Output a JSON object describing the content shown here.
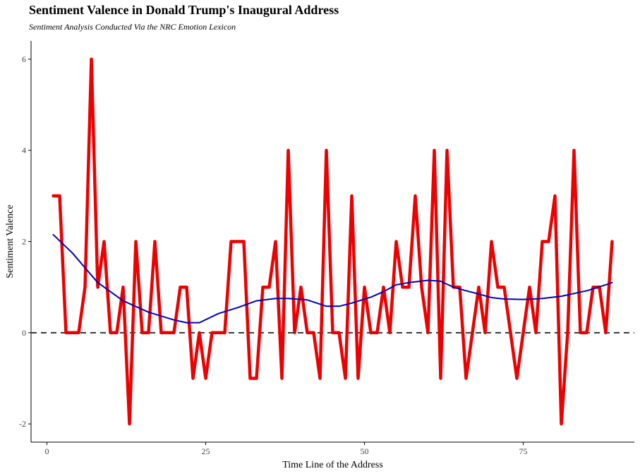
{
  "chart_data": {
    "type": "line",
    "title": "Sentiment Valence in Donald Trump's Inaugural Address",
    "subtitle": "Sentiment Analysis Conducted Via the NRC Emotion Lexicon",
    "xlabel": "Time Line of the Address",
    "ylabel": "Sentiment Valence",
    "xlim": [
      -2.5,
      92.5
    ],
    "ylim": [
      -2.4,
      6.4
    ],
    "x_ticks": [
      0,
      25,
      50,
      75
    ],
    "y_ticks": [
      -2,
      0,
      2,
      4,
      6
    ],
    "grid": false,
    "reference_line": {
      "y": 0,
      "style": "dashed",
      "color": "#333333"
    },
    "series": [
      {
        "kind": "sentiment",
        "color": "#ee0000",
        "x": [
          1,
          2,
          3,
          4,
          5,
          6,
          7,
          8,
          9,
          10,
          11,
          12,
          13,
          14,
          15,
          16,
          17,
          18,
          19,
          20,
          21,
          22,
          23,
          24,
          25,
          26,
          27,
          28,
          29,
          30,
          31,
          32,
          33,
          34,
          35,
          36,
          37,
          38,
          39,
          40,
          41,
          42,
          43,
          44,
          45,
          46,
          47,
          48,
          49,
          50,
          51,
          52,
          53,
          54,
          55,
          56,
          57,
          58,
          59,
          60,
          61,
          62,
          63,
          64,
          65,
          66,
          67,
          68,
          69,
          70,
          71,
          72,
          73,
          74,
          75,
          76,
          77,
          78,
          79,
          80,
          81,
          82,
          83,
          84,
          85,
          86,
          87,
          88,
          89
        ],
        "values": [
          3,
          3,
          0,
          0,
          0,
          1,
          6,
          1,
          2,
          0,
          0,
          1,
          -2,
          2,
          0,
          0,
          2,
          0,
          0,
          0,
          1,
          1,
          -1,
          0,
          -1,
          0,
          0,
          0,
          2,
          2,
          2,
          -1,
          -1,
          1,
          1,
          2,
          -1,
          4,
          0,
          1,
          0,
          0,
          -1,
          4,
          0,
          0,
          -1,
          3,
          -1,
          1,
          0,
          0,
          1,
          0,
          2,
          1,
          1,
          3,
          1,
          0,
          4,
          -1,
          4,
          1,
          1,
          -1,
          0,
          1,
          0,
          2,
          1,
          1,
          0,
          -1,
          0,
          1,
          0,
          2,
          2,
          3,
          -2,
          0,
          4,
          0,
          0,
          1,
          1,
          0,
          2
        ]
      },
      {
        "kind": "smooth",
        "color": "#0000bb",
        "x": [
          1,
          4,
          8,
          12,
          16,
          20,
          22,
          24,
          27,
          30,
          33,
          36,
          38,
          41,
          44,
          46,
          48,
          51,
          53,
          55,
          57,
          60,
          62,
          64,
          66,
          68,
          70,
          72,
          75,
          78,
          81,
          85,
          88,
          89
        ],
        "values": [
          2.15,
          1.75,
          1.1,
          0.7,
          0.45,
          0.28,
          0.22,
          0.22,
          0.42,
          0.55,
          0.7,
          0.75,
          0.75,
          0.72,
          0.58,
          0.58,
          0.65,
          0.78,
          0.9,
          1.05,
          1.1,
          1.15,
          1.13,
          1.0,
          0.92,
          0.85,
          0.77,
          0.74,
          0.73,
          0.75,
          0.8,
          0.92,
          1.05,
          1.1
        ]
      }
    ]
  }
}
